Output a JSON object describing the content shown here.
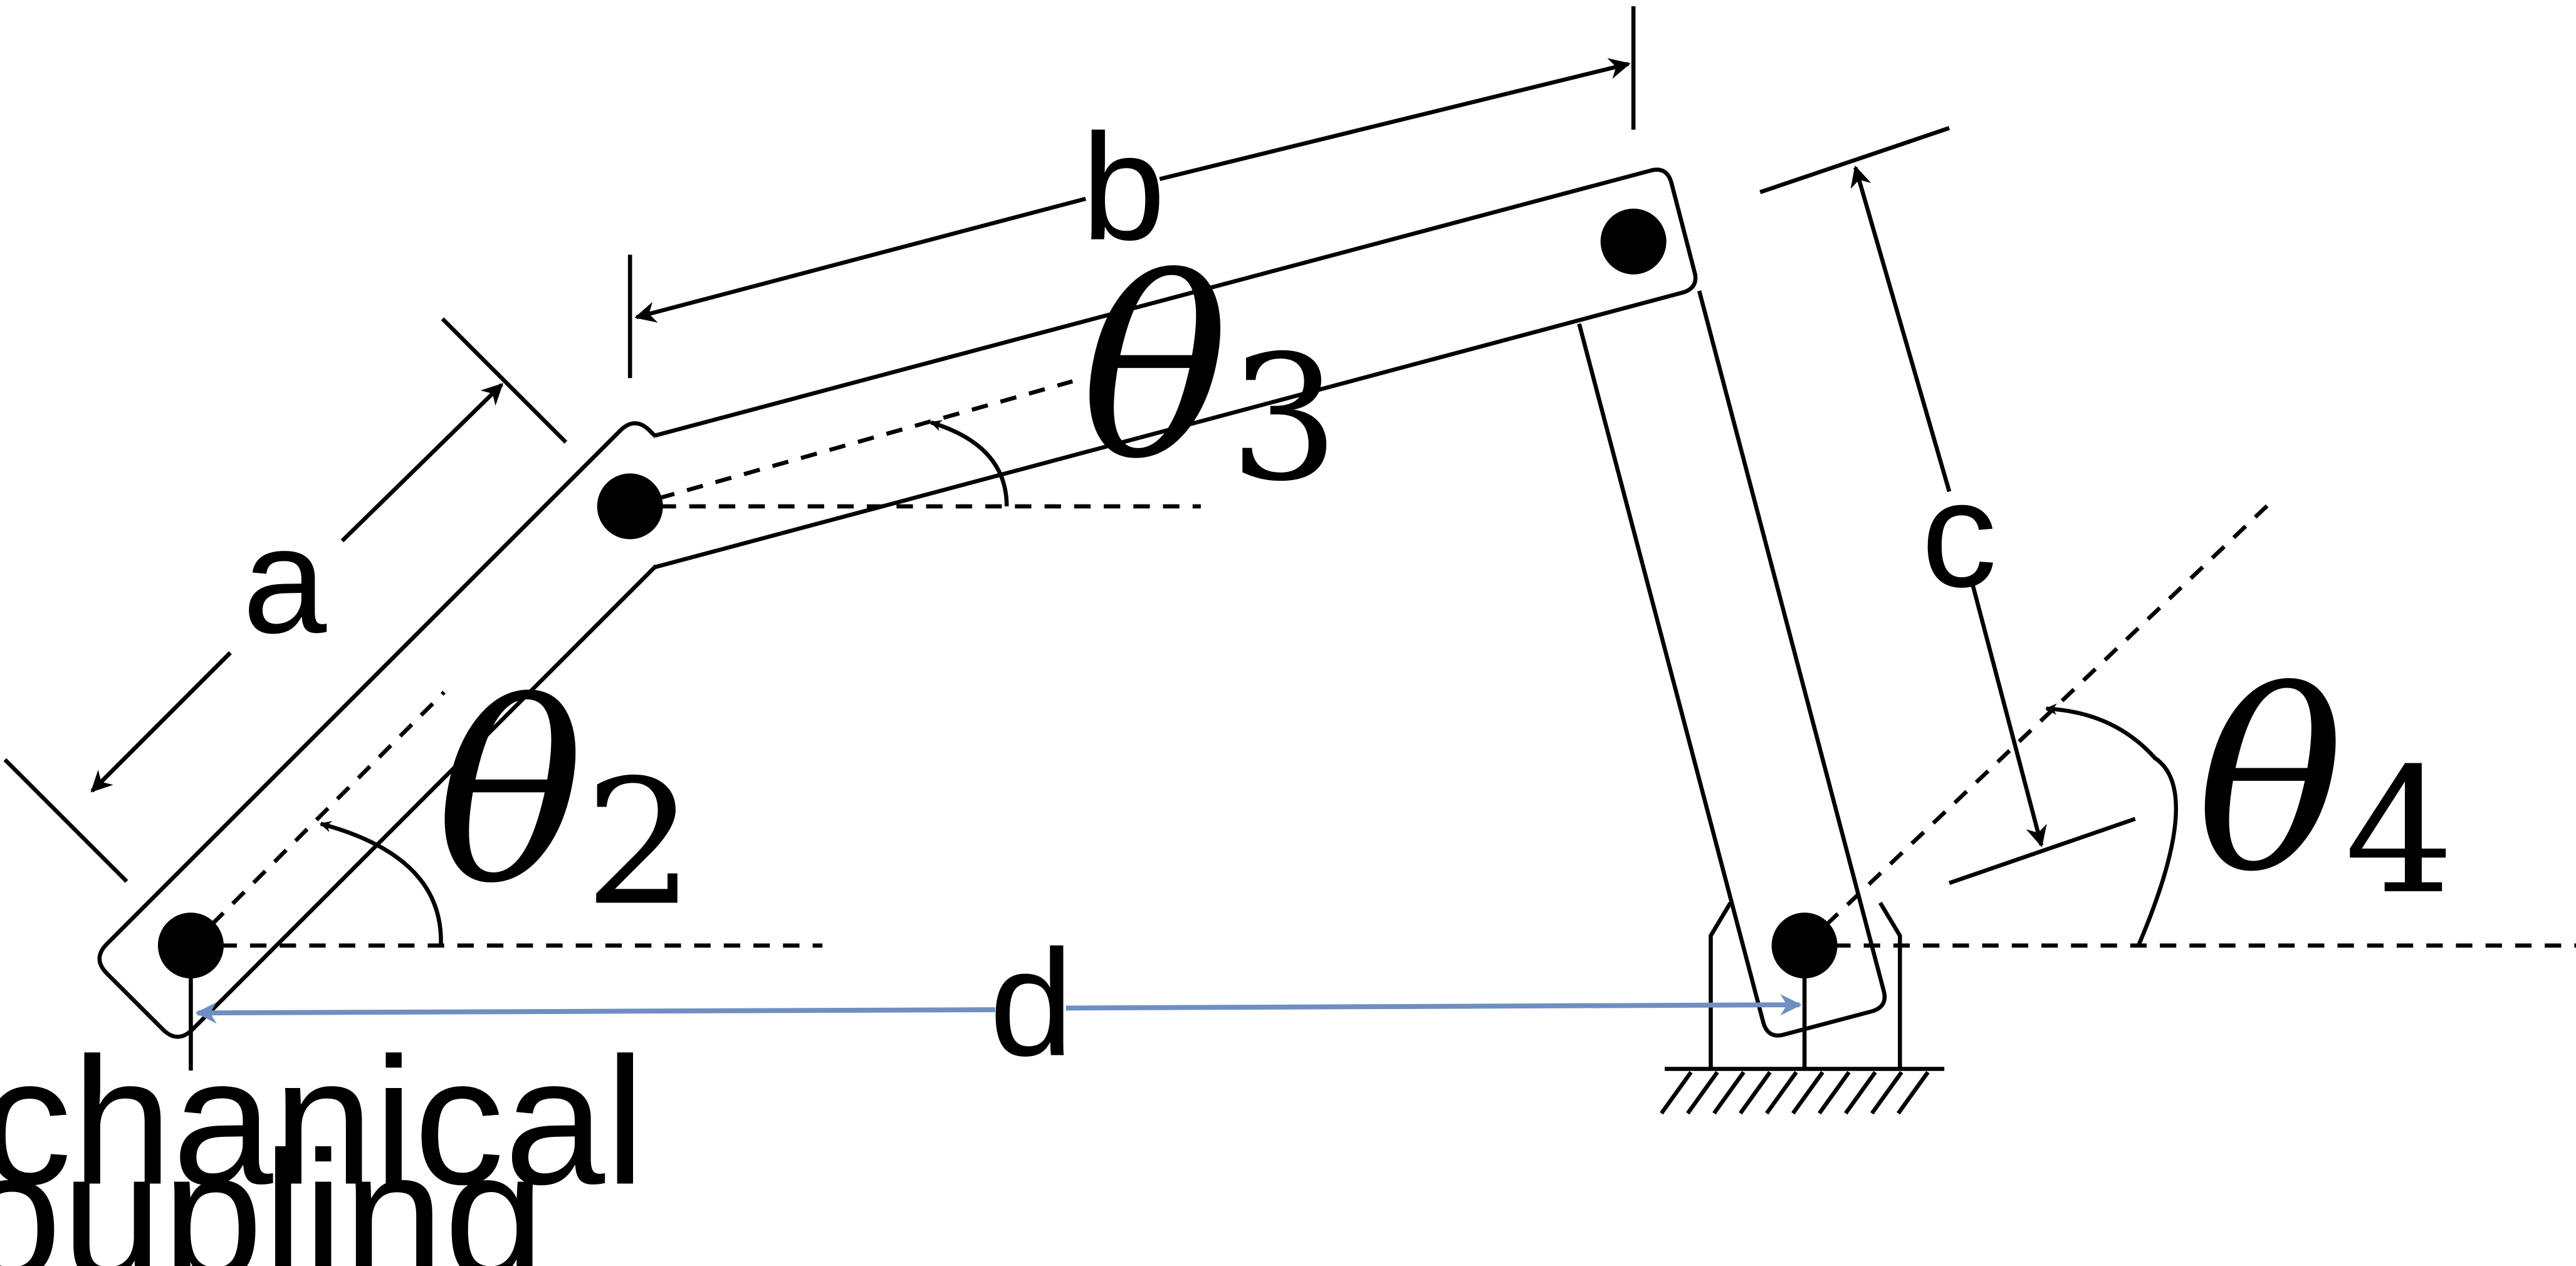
{
  "labels": {
    "a": "a",
    "b": "b",
    "c": "c",
    "d": "d",
    "theta2": {
      "symbol": "θ",
      "sub": "2"
    },
    "theta3": {
      "symbol": "θ",
      "sub": "3"
    },
    "theta4": {
      "symbol": "θ",
      "sub": "4"
    },
    "coupling_line1": "Mechanical",
    "coupling_line2": "Coupling"
  },
  "colors": {
    "ink": "#000000",
    "accent": "#6f8fc0",
    "background": "#ffffff"
  }
}
